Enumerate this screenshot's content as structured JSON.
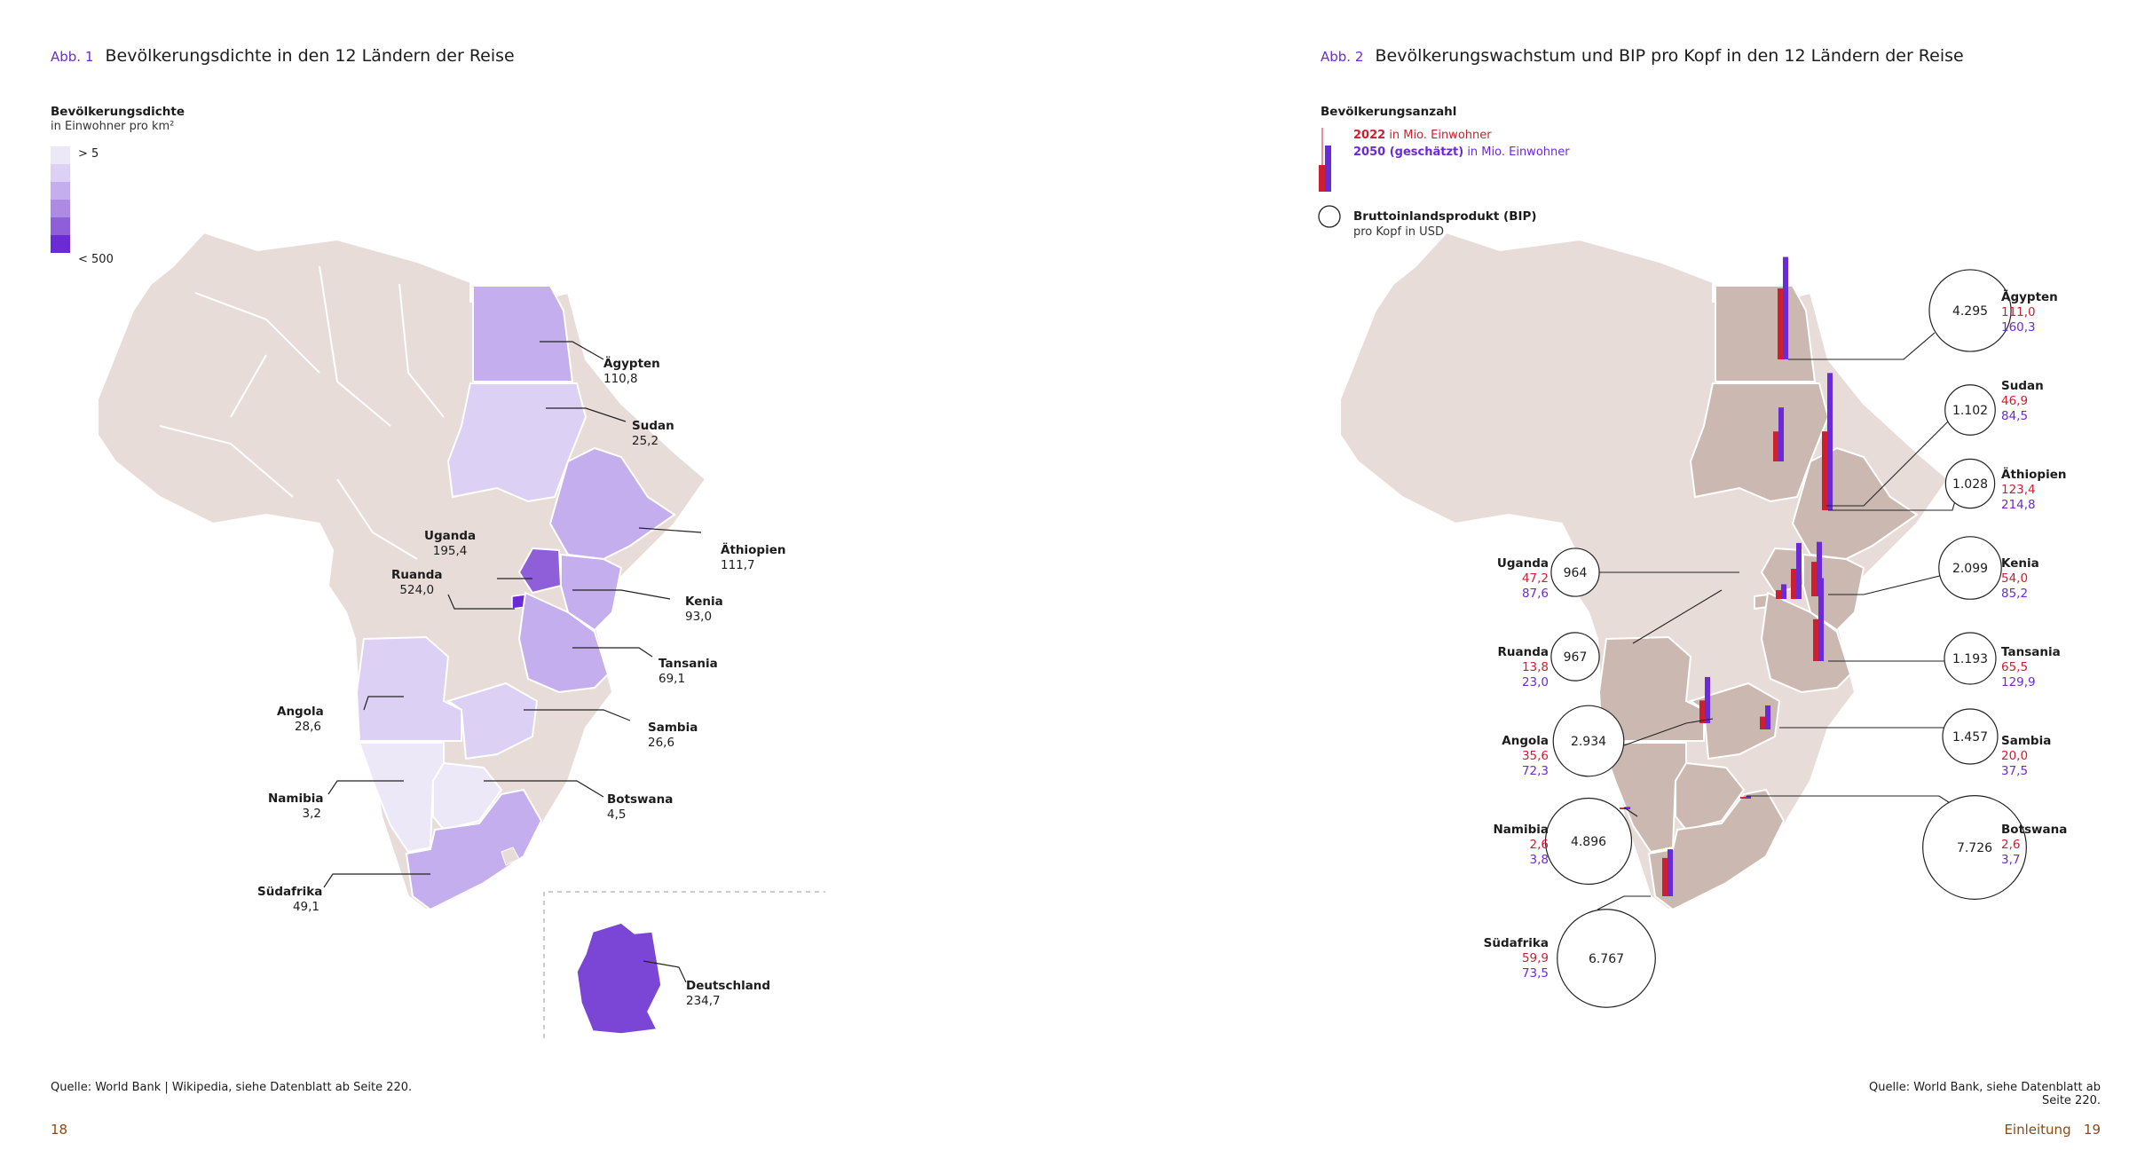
{
  "left": {
    "fig_label": "Abb. 1",
    "fig_title": "Bevölkerungsdichte in den 12 Ländern der Reise",
    "legend_title": "Bevölkerungsdichte",
    "legend_sub": "in Einwohner pro km²",
    "legend_min": "> 5",
    "legend_max": "< 500",
    "legend_colors": [
      "#ede8f8",
      "#dcd0f4",
      "#c5aeed",
      "#ad8be4",
      "#8f5fd9",
      "#6a2bd6"
    ],
    "countries": [
      {
        "name": "Ägypten",
        "value": "110,8"
      },
      {
        "name": "Sudan",
        "value": "25,2"
      },
      {
        "name": "Äthiopien",
        "value": "111,7"
      },
      {
        "name": "Uganda",
        "value": "195,4"
      },
      {
        "name": "Ruanda",
        "value": "524,0"
      },
      {
        "name": "Kenia",
        "value": "93,0"
      },
      {
        "name": "Tansania",
        "value": "69,1"
      },
      {
        "name": "Angola",
        "value": "28,6"
      },
      {
        "name": "Sambia",
        "value": "26,6"
      },
      {
        "name": "Namibia",
        "value": "3,2"
      },
      {
        "name": "Botswana",
        "value": "4,5"
      },
      {
        "name": "Südafrika",
        "value": "49,1"
      },
      {
        "name": "Deutschland",
        "value": "234,7"
      }
    ],
    "source": "Quelle: World Bank | Wikipedia, siehe Datenblatt ab Seite 220.",
    "page_number": "18"
  },
  "right": {
    "fig_label": "Abb. 2",
    "fig_title": "Bevölkerungswachstum und BIP pro Kopf in den 12 Ländern der Reise",
    "legend_pop_title": "Bevölkerungsanzahl",
    "legend_2022_year": "2022",
    "legend_2022_text": " in Mio. Einwohner",
    "legend_2050_year": "2050 (geschätzt)",
    "legend_2050_text": " in Mio. Einwohner",
    "legend_gdp_title": "Bruttoinlandsprodukt (BIP)",
    "legend_gdp_sub": "pro Kopf in USD",
    "color_2022": "#cc1f2f",
    "color_2050": "#6a2bd6",
    "countries": [
      {
        "name": "Ägypten",
        "pop2022": "111,0",
        "pop2050": "160,3",
        "gdp": "4.295",
        "p22": 111.0,
        "p50": 160.3
      },
      {
        "name": "Sudan",
        "pop2022": "46,9",
        "pop2050": "84,5",
        "gdp": "1.102",
        "p22": 46.9,
        "p50": 84.5
      },
      {
        "name": "Äthiopien",
        "pop2022": "123,4",
        "pop2050": "214,8",
        "gdp": "1.028",
        "p22": 123.4,
        "p50": 214.8
      },
      {
        "name": "Uganda",
        "pop2022": "47,2",
        "pop2050": "87,6",
        "gdp": "964",
        "p22": 47.2,
        "p50": 87.6
      },
      {
        "name": "Kenia",
        "pop2022": "54,0",
        "pop2050": "85,2",
        "gdp": "2.099",
        "p22": 54.0,
        "p50": 85.2
      },
      {
        "name": "Ruanda",
        "pop2022": "13,8",
        "pop2050": "23,0",
        "gdp": "967",
        "p22": 13.8,
        "p50": 23.0
      },
      {
        "name": "Tansania",
        "pop2022": "65,5",
        "pop2050": "129,9",
        "gdp": "1.193",
        "p22": 65.5,
        "p50": 129.9
      },
      {
        "name": "Angola",
        "pop2022": "35,6",
        "pop2050": "72,3",
        "gdp": "2.934",
        "p22": 35.6,
        "p50": 72.3
      },
      {
        "name": "Sambia",
        "pop2022": "20,0",
        "pop2050": "37,5",
        "gdp": "1.457",
        "p22": 20.0,
        "p50": 37.5
      },
      {
        "name": "Namibia",
        "pop2022": "2,6",
        "pop2050": "3,8",
        "gdp": "4.896",
        "p22": 2.6,
        "p50": 3.8
      },
      {
        "name": "Botswana",
        "pop2022": "2,6",
        "pop2050": "3,7",
        "gdp": "7.726",
        "p22": 2.6,
        "p50": 3.7
      },
      {
        "name": "Südafrika",
        "pop2022": "59,9",
        "pop2050": "73,5",
        "gdp": "6.767",
        "p22": 59.9,
        "p50": 73.5
      }
    ],
    "source": "Quelle: World Bank, siehe Datenblatt ab Seite 220.",
    "section": "Einleitung",
    "page_number": "19"
  }
}
